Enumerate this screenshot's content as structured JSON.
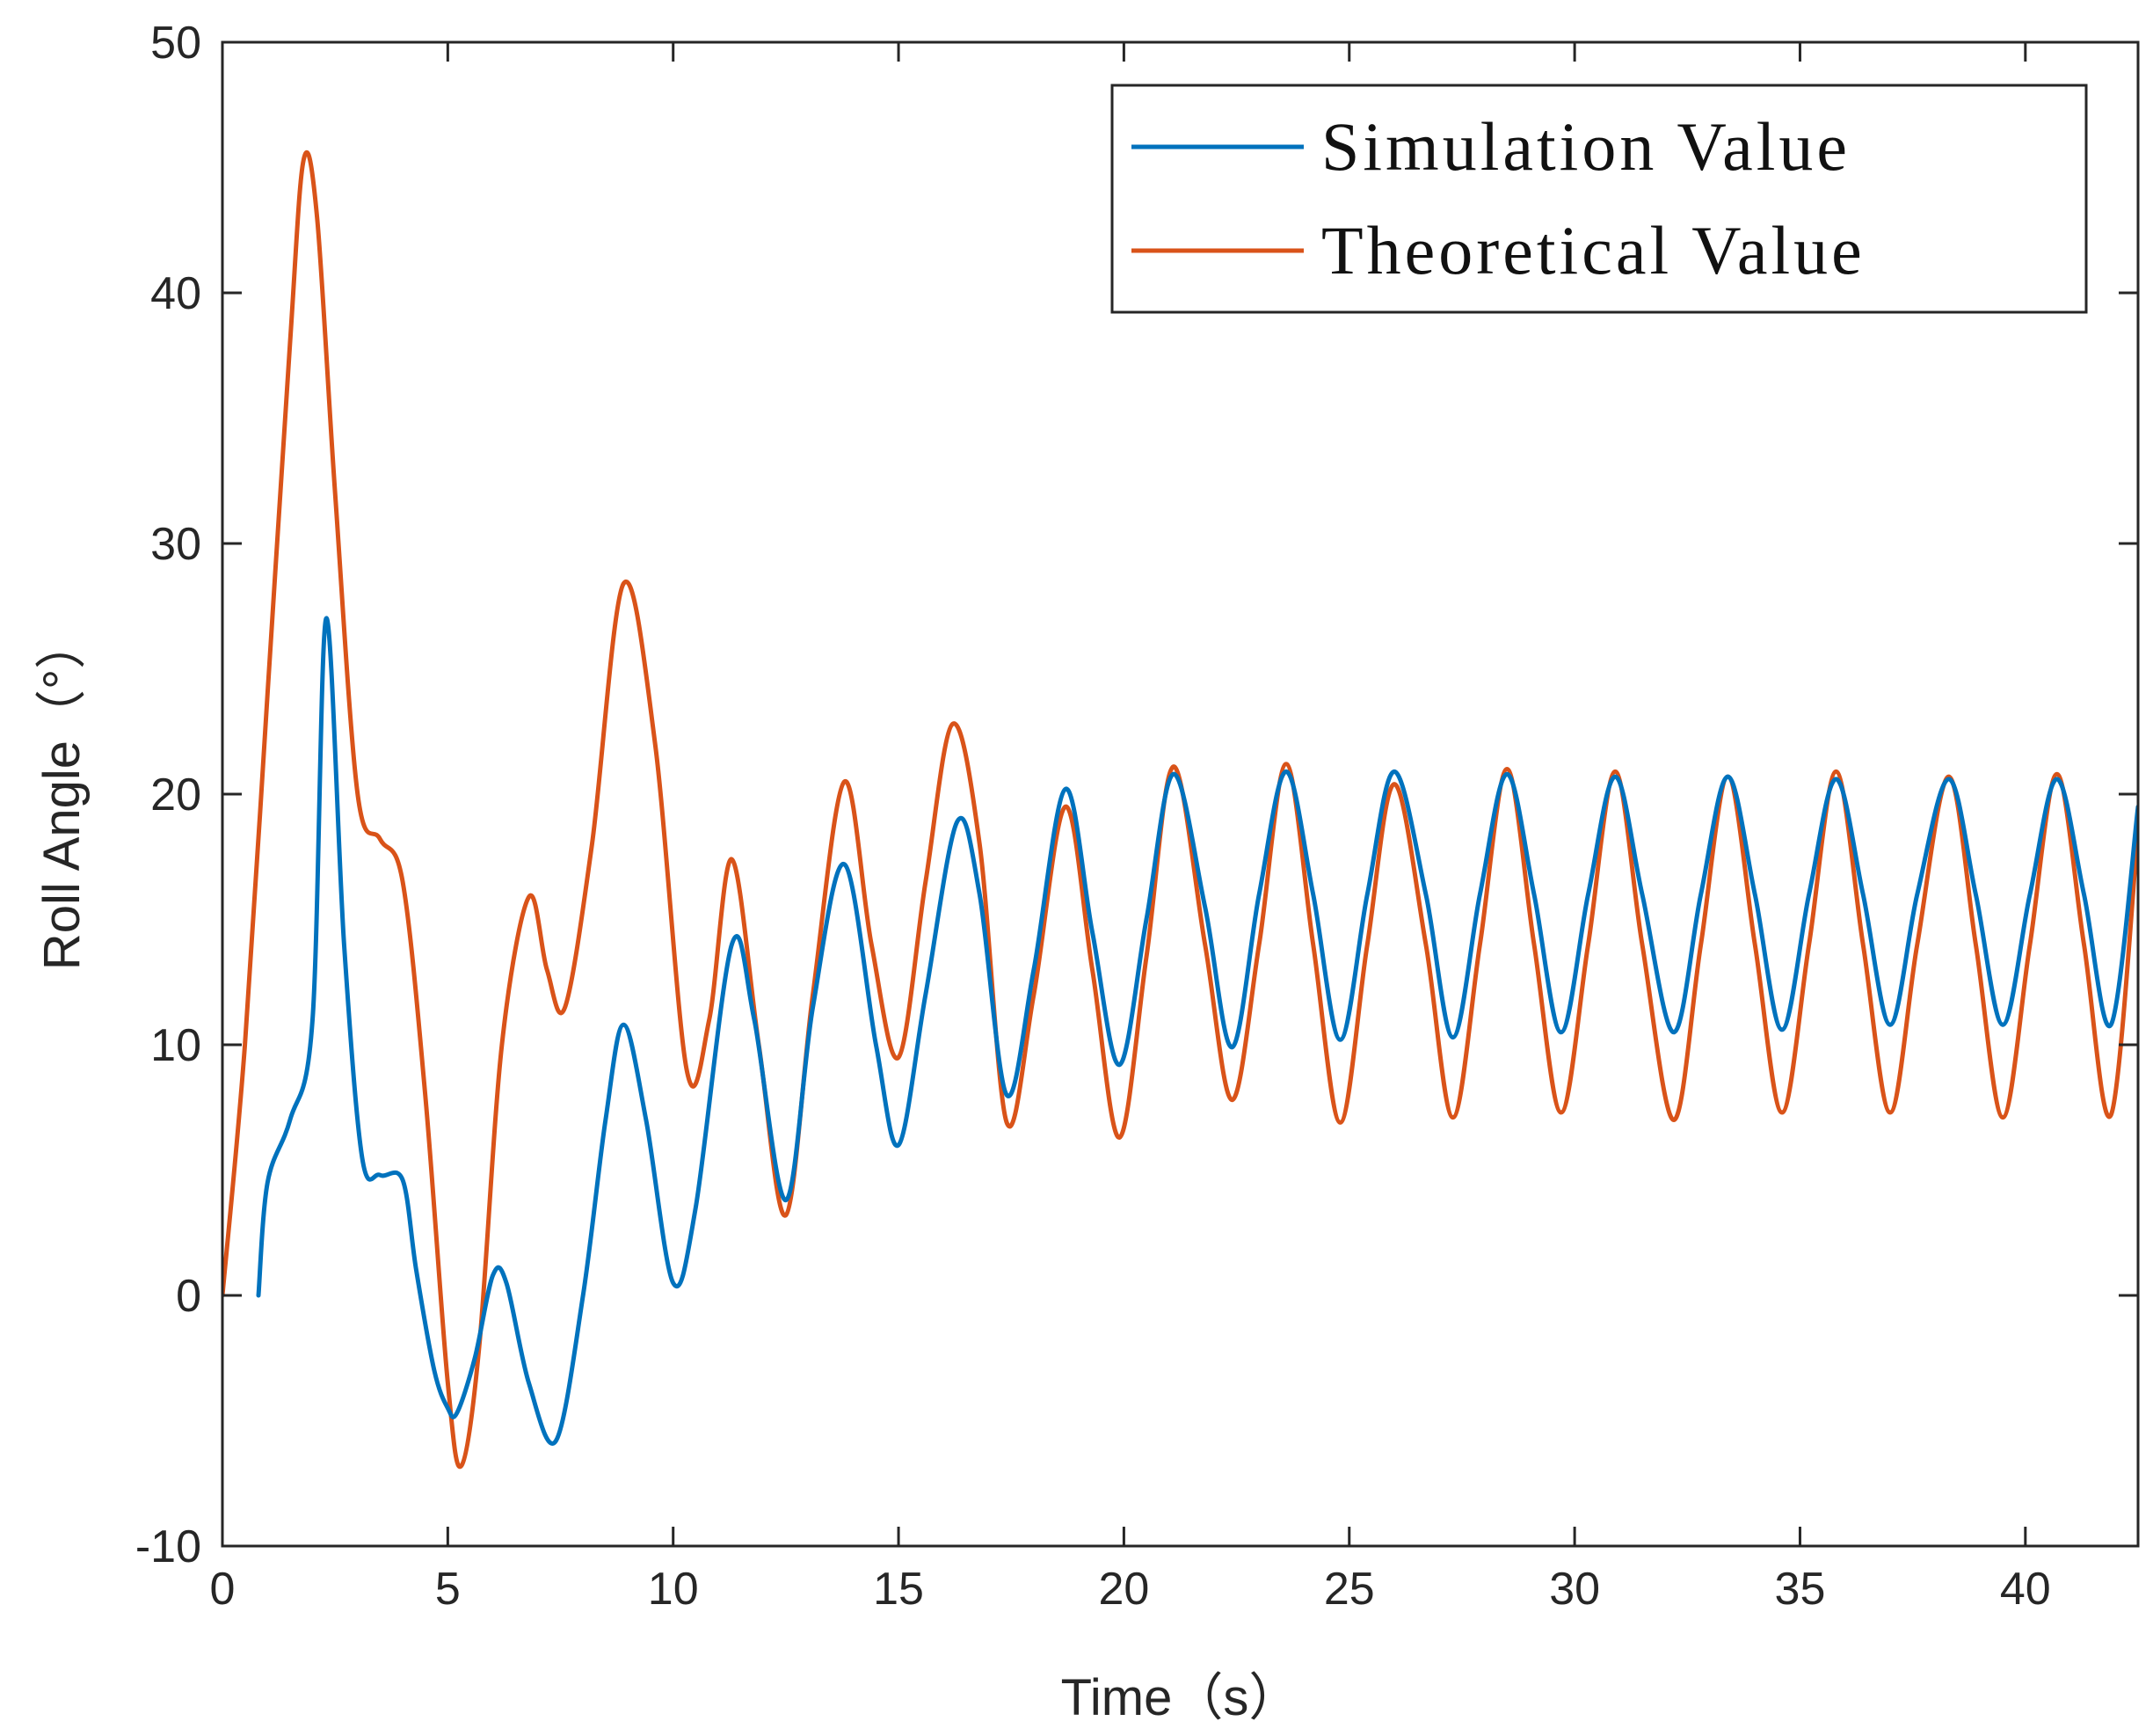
{
  "chart_data": {
    "type": "line",
    "title": "",
    "xlabel": "Time（s）",
    "ylabel": "Roll Angle（°）",
    "xlim": [
      0,
      42.5
    ],
    "ylim": [
      -10,
      50
    ],
    "xticks": [
      0,
      5,
      10,
      15,
      20,
      25,
      30,
      35,
      40
    ],
    "yticks": [
      -10,
      0,
      10,
      20,
      30,
      40,
      50
    ],
    "legend": {
      "placement": "top-right"
    },
    "grid": false,
    "series": [
      {
        "name": "Simulation Value",
        "color": "#0072BD",
        "x": [
          0.8,
          1.0,
          1.5,
          2.0,
          2.3,
          2.7,
          3.1,
          3.5,
          4.0,
          4.3,
          4.7,
          5.0,
          5.2,
          5.6,
          6.0,
          6.3,
          6.8,
          7.4,
          8.0,
          8.5,
          8.9,
          9.4,
          10.0,
          10.5,
          11.3,
          11.8,
          12.5,
          13.1,
          13.8,
          14.5,
          15.0,
          15.6,
          16.3,
          16.8,
          17.4,
          18.0,
          18.7,
          19.3,
          19.9,
          20.5,
          21.1,
          21.8,
          22.4,
          23.0,
          23.6,
          24.2,
          24.8,
          25.4,
          26.0,
          26.7,
          27.3,
          27.9,
          28.5,
          29.1,
          29.7,
          30.3,
          30.9,
          31.5,
          32.2,
          32.8,
          33.4,
          34.0,
          34.6,
          35.2,
          35.8,
          36.4,
          37.0,
          37.6,
          38.3,
          38.9,
          39.5,
          40.1,
          40.7,
          41.3,
          41.9,
          42.5
        ],
        "y": [
          0,
          4.5,
          7.0,
          11.0,
          27.0,
          14.0,
          5.5,
          4.8,
          4.6,
          1.0,
          -3.0,
          -4.5,
          -4.7,
          -2.5,
          0.8,
          0.5,
          -3.5,
          -5.8,
          0.0,
          7.0,
          10.8,
          7.0,
          0.5,
          3.5,
          14.0,
          11.0,
          3.8,
          11.5,
          17.2,
          10.0,
          6.0,
          12.0,
          18.9,
          16.0,
          8.0,
          13.0,
          20.2,
          14.5,
          9.2,
          15.0,
          20.8,
          15.5,
          9.9,
          16.0,
          20.9,
          16.0,
          10.2,
          16.0,
          20.9,
          16.0,
          10.3,
          16.0,
          20.8,
          16.0,
          10.5,
          16.0,
          20.7,
          16.0,
          10.5,
          16.0,
          20.7,
          16.0,
          10.6,
          16.0,
          20.6,
          16.0,
          10.8,
          16.0,
          20.6,
          16.0,
          10.8,
          16.0,
          20.6,
          16.0,
          10.8,
          19.5
        ]
      },
      {
        "name": "Theoretical Value",
        "color": "#D95319",
        "x": [
          0.0,
          0.5,
          1.0,
          1.5,
          1.8,
          2.1,
          2.5,
          3.0,
          3.5,
          4.0,
          4.5,
          5.0,
          5.3,
          5.7,
          6.2,
          6.8,
          7.2,
          7.6,
          8.2,
          8.9,
          9.6,
          10.3,
          10.8,
          11.3,
          11.9,
          12.5,
          13.1,
          13.8,
          14.4,
          15.0,
          15.6,
          16.2,
          16.8,
          17.4,
          18.0,
          18.7,
          19.3,
          19.9,
          20.5,
          21.1,
          21.8,
          22.4,
          23.0,
          23.6,
          24.2,
          24.8,
          25.4,
          26.0,
          26.7,
          27.3,
          27.9,
          28.5,
          29.1,
          29.7,
          30.3,
          30.9,
          31.5,
          32.2,
          32.8,
          33.4,
          34.0,
          34.6,
          35.2,
          35.8,
          36.4,
          37.0,
          37.6,
          38.3,
          38.9,
          39.5,
          40.1,
          40.7,
          41.3,
          41.9,
          42.5
        ],
        "y": [
          0.0,
          10.0,
          24.0,
          38.0,
          45.3,
          43.0,
          32.0,
          20.0,
          18.2,
          16.5,
          8.0,
          -3.5,
          -6.8,
          -2.0,
          10.0,
          15.9,
          13.0,
          11.5,
          18.0,
          28.4,
          22.0,
          9.0,
          11.0,
          17.4,
          10.0,
          3.2,
          12.0,
          20.5,
          14.0,
          9.5,
          16.5,
          22.8,
          18.0,
          6.9,
          12.0,
          19.5,
          13.0,
          6.3,
          13.5,
          21.1,
          14.0,
          7.8,
          14.0,
          21.2,
          14.0,
          6.9,
          14.0,
          20.4,
          14.0,
          7.1,
          14.0,
          21.0,
          14.0,
          7.3,
          14.0,
          20.9,
          14.0,
          7.0,
          14.0,
          20.7,
          14.0,
          7.3,
          14.0,
          20.9,
          14.0,
          7.3,
          14.0,
          20.7,
          14.0,
          7.1,
          14.0,
          20.8,
          14.0,
          7.2,
          18.6
        ]
      }
    ]
  }
}
